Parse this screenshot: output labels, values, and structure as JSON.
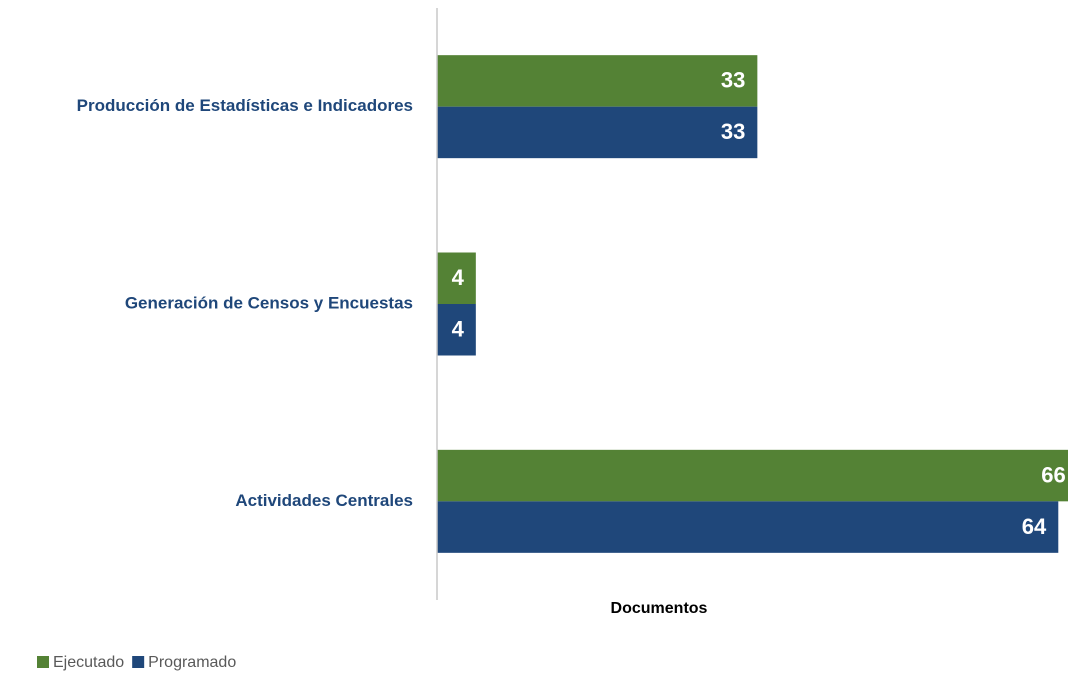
{
  "chart_data": {
    "type": "bar",
    "orientation": "horizontal",
    "x_axis_label": "Documentos",
    "categories": [
      "Producción de Estadísticas e Indicadores",
      "Generación de Censos y Encuestas",
      "Actividades Centrales"
    ],
    "series": [
      {
        "name": "Ejecutado",
        "color": "#548235",
        "values": [
          33,
          4,
          66
        ]
      },
      {
        "name": "Programado",
        "color": "#1f477a",
        "values": [
          33,
          4,
          64
        ]
      }
    ],
    "xlim": [
      0,
      65
    ],
    "legend": "bottom-left"
  }
}
